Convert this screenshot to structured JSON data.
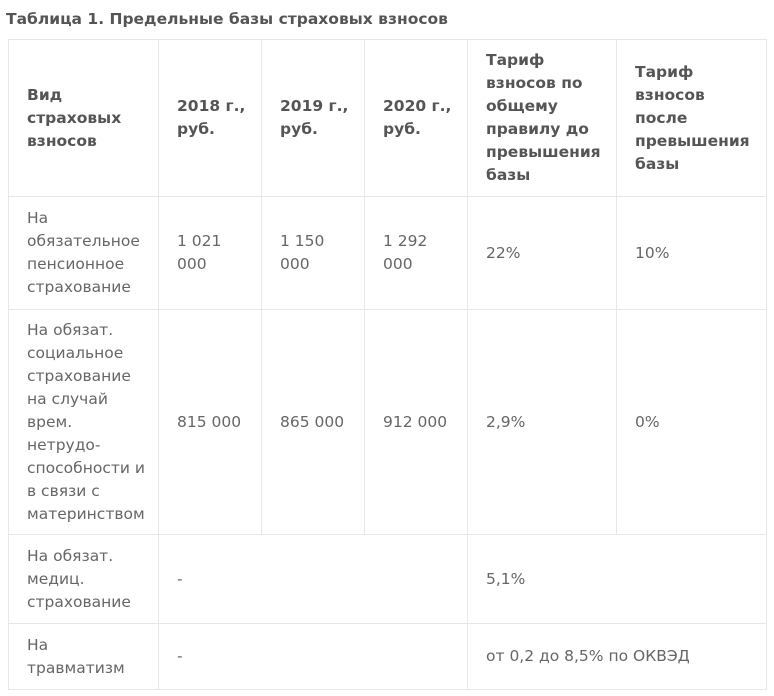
{
  "caption": "Таблица 1. Предельные базы страховых взносов",
  "table": {
    "headers": [
      "Вид страховых взносов",
      "2018 г., руб.",
      "2019 г., руб.",
      "2020 г., руб.",
      "Тариф взносов по общему правилу до превышения базы",
      "Тариф взносов после превышения базы"
    ],
    "rows": [
      {
        "type": "На обязательное пенсионное страхование",
        "y2018": "1 021 000",
        "y2019": "1 150 000",
        "y2020": "1 292 000",
        "rate_before": "22%",
        "rate_after": "10%"
      },
      {
        "type": "На обязат. социальное страхование на случай врем. нетрудо-способности и в связи с материнством",
        "y2018": "815 000",
        "y2019": "865 000",
        "y2020": "912 000",
        "rate_before": "2,9%",
        "rate_after": "0%"
      },
      {
        "type": "На обязат. медиц. страхование",
        "limit": "-",
        "rate": "5,1%"
      },
      {
        "type": "На травматизм",
        "limit": "-",
        "rate": "от 0,2 до 8,5% по ОКВЭД"
      }
    ]
  }
}
